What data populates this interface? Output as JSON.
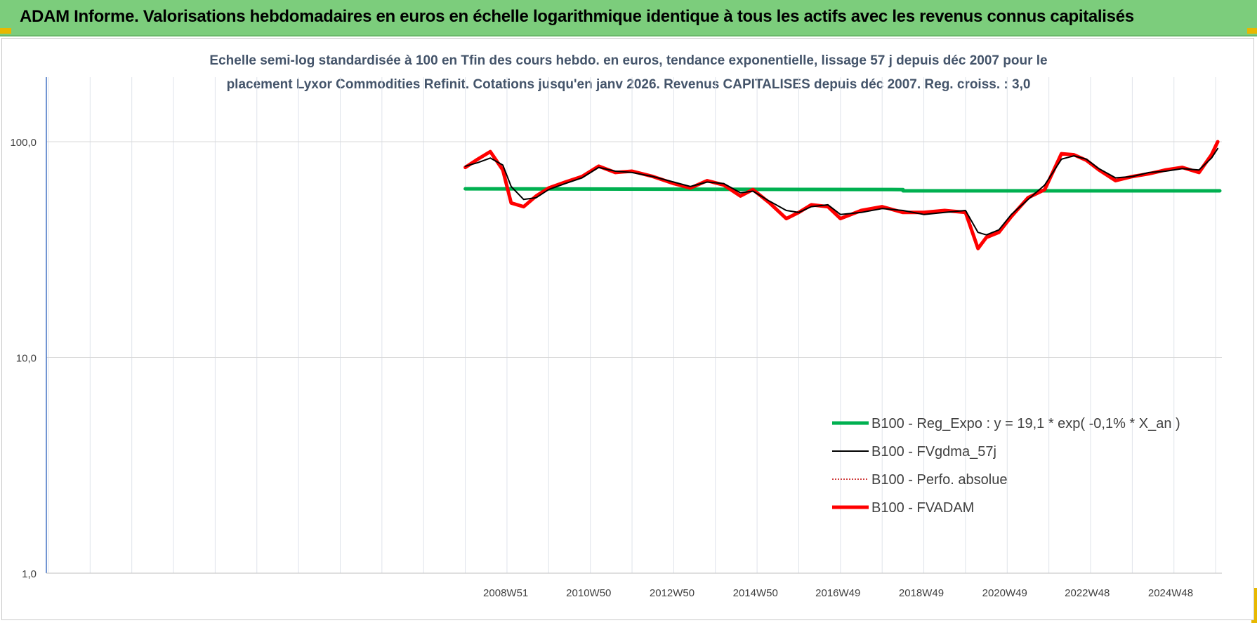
{
  "banner": {
    "title": "ADAM Informe. Valorisations hebdomadaires en euros en échelle logarithmique identique à tous les actifs avec les revenus connus capitalisés",
    "color": "#7ccd7c"
  },
  "chart_data": {
    "type": "line",
    "title_line1": "Echelle semi-log standardisée à 100 en Tfin des cours hebdo. en euros, tendance exponentielle, lissage 57 j depuis déc 2007 pour le",
    "title_line2": "placement Lyxor Commodities Refinit. Cotations jusqu'en janv 2026. Revenus CAPITALISES depuis déc 2007. Reg. croiss. : 3,0",
    "y_scale": "log",
    "ylim": [
      1,
      200
    ],
    "y_ticks": [
      {
        "value": 100,
        "label": "100,0"
      },
      {
        "value": 10,
        "label": "10,0"
      },
      {
        "value": 1,
        "label": "1,0"
      }
    ],
    "xlim": [
      1997.95,
      2026.15
    ],
    "x_ticks": [
      {
        "year": 2008.97,
        "label": "2008W51"
      },
      {
        "year": 2010.96,
        "label": "2010W50"
      },
      {
        "year": 2012.96,
        "label": "2012W50"
      },
      {
        "year": 2014.96,
        "label": "2014W50"
      },
      {
        "year": 2016.94,
        "label": "2016W49"
      },
      {
        "year": 2018.94,
        "label": "2018W49"
      },
      {
        "year": 2020.94,
        "label": "2020W49"
      },
      {
        "year": 2022.92,
        "label": "2022W48"
      },
      {
        "year": 2024.92,
        "label": "2024W48"
      }
    ],
    "grid": true,
    "legend_position": "bottom-right",
    "series": [
      {
        "name": "B100 - Reg_Expo : y = 19,1 * exp( -0,1% *  X_an )",
        "key": "reg",
        "color": "#00b050",
        "style": "solid-thick",
        "x": [
          2008.0,
          2018.5,
          2018.5,
          2026.1
        ],
        "y": [
          60.5,
          60.0,
          59.2,
          59.2
        ]
      },
      {
        "name": "B100 - FVgdma_57j",
        "key": "fvgdma",
        "color": "#000000",
        "style": "solid-thin",
        "x": [
          2008.0,
          2008.3,
          2008.6,
          2008.9,
          2009.1,
          2009.4,
          2009.7,
          2010.0,
          2010.4,
          2010.8,
          2011.2,
          2011.6,
          2012.0,
          2012.5,
          2013.0,
          2013.4,
          2013.8,
          2014.2,
          2014.6,
          2014.9,
          2015.3,
          2015.7,
          2016.0,
          2016.3,
          2016.7,
          2017.0,
          2017.5,
          2018.0,
          2018.5,
          2019.0,
          2019.5,
          2020.0,
          2020.3,
          2020.5,
          2020.8,
          2021.1,
          2021.5,
          2021.9,
          2022.3,
          2022.6,
          2022.9,
          2023.2,
          2023.6,
          2024.0,
          2024.4,
          2024.8,
          2025.2,
          2025.6,
          2025.9,
          2026.05
        ],
        "y": [
          77,
          80,
          84,
          78,
          62,
          54,
          55,
          60,
          64,
          68,
          76,
          73,
          72,
          69,
          65,
          62,
          65,
          64,
          58,
          59,
          53,
          48,
          47,
          50,
          51,
          46,
          47,
          49,
          48,
          46,
          47,
          48,
          38,
          37,
          39,
          46,
          54,
          63,
          83,
          86,
          83,
          75,
          68,
          69,
          72,
          73,
          75,
          74,
          84,
          93
        ]
      },
      {
        "name": "B100 - Perfo. absolue",
        "key": "perfo",
        "color": "#c00000",
        "style": "dotted",
        "x": [
          2008.0,
          2008.3,
          2008.6,
          2008.9,
          2009.1,
          2009.4,
          2009.7,
          2010.0,
          2010.4,
          2010.8,
          2011.2,
          2011.6,
          2012.0,
          2012.5,
          2013.0,
          2013.4,
          2013.8,
          2014.2,
          2014.6,
          2014.9,
          2015.3,
          2015.7,
          2016.0,
          2016.3,
          2016.7,
          2017.0,
          2017.5,
          2018.0,
          2018.5,
          2019.0,
          2019.5,
          2020.0,
          2020.3,
          2020.5,
          2020.8,
          2021.1,
          2021.5,
          2021.9,
          2022.3,
          2022.6,
          2022.9,
          2023.2,
          2023.6,
          2024.0,
          2024.4,
          2024.8,
          2025.2,
          2025.6,
          2025.9,
          2026.05
        ],
        "y": [
          76,
          83,
          90,
          74,
          52,
          50,
          56,
          61,
          65,
          69,
          77,
          72,
          73,
          69,
          64,
          61,
          66,
          63,
          56,
          60,
          52,
          44,
          47,
          51,
          50,
          44,
          48,
          50,
          47,
          47,
          48,
          47,
          32,
          36,
          38,
          45,
          55,
          60,
          88,
          87,
          82,
          74,
          66,
          69,
          71,
          74,
          76,
          72,
          87,
          100
        ]
      },
      {
        "name": "B100 - FVADAM",
        "key": "fvadam",
        "color": "#ff0000",
        "style": "solid-thick",
        "x": [
          2008.0,
          2008.3,
          2008.6,
          2008.9,
          2009.1,
          2009.4,
          2009.7,
          2010.0,
          2010.4,
          2010.8,
          2011.2,
          2011.6,
          2012.0,
          2012.5,
          2013.0,
          2013.4,
          2013.8,
          2014.2,
          2014.6,
          2014.9,
          2015.3,
          2015.7,
          2016.0,
          2016.3,
          2016.7,
          2017.0,
          2017.5,
          2018.0,
          2018.5,
          2019.0,
          2019.5,
          2020.0,
          2020.3,
          2020.5,
          2020.8,
          2021.1,
          2021.5,
          2021.9,
          2022.3,
          2022.6,
          2022.9,
          2023.2,
          2023.6,
          2024.0,
          2024.4,
          2024.8,
          2025.2,
          2025.6,
          2025.9,
          2026.05
        ],
        "y": [
          76,
          83,
          90,
          74,
          52,
          50,
          56,
          61,
          65,
          69,
          77,
          72,
          73,
          69,
          64,
          61,
          66,
          63,
          56,
          60,
          52,
          44,
          47,
          51,
          50,
          44,
          48,
          50,
          47,
          47,
          48,
          47,
          32,
          36,
          38,
          45,
          55,
          60,
          88,
          87,
          82,
          74,
          66,
          69,
          71,
          74,
          76,
          72,
          87,
          100
        ]
      }
    ]
  }
}
